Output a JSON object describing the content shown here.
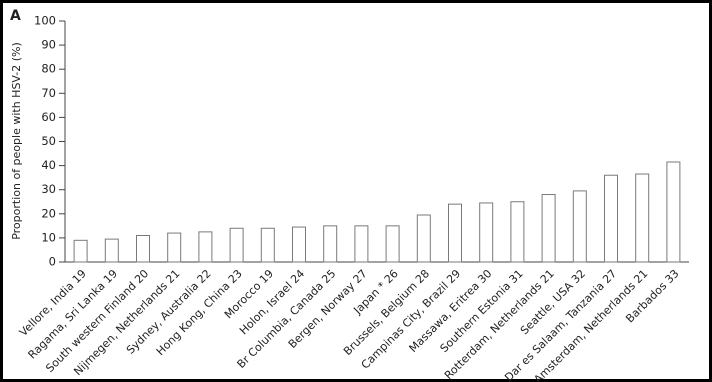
{
  "chart_data": {
    "type": "bar",
    "panel_label": "A",
    "y_label": "Proportion of people with HSV-2 (%)",
    "categories": [
      "Vellore, India 19",
      "Ragama, Sri Lanka 19",
      "South western Finland 20",
      "Nijmegen, Netherlands 21",
      "Sydney, Australia 22",
      "Hong Kong, China 23",
      "Morocco 19",
      "Holon, Israel 24",
      "Br Columbia, Canada 25",
      "Bergen, Norway 27",
      "Japan * 26",
      "Brussels, Belgium 28",
      "Campinas City, Brazil 29",
      "Massawa, Eritrea 30",
      "Southern Estonia 31",
      "Rotterdam, Netherlands 21",
      "Seattle, USA 32",
      "Dar es Salaam, Tanzania 27",
      "Amsterdam, Netherlands 21",
      "Barbados 33"
    ],
    "values": [
      9,
      9.5,
      11,
      12,
      12.5,
      14,
      14,
      14.5,
      15,
      15,
      15,
      19.5,
      24,
      24.5,
      25,
      28,
      29.5,
      36,
      36.5,
      41.5
    ],
    "color": "#ffffff",
    "ylim": [
      0,
      100
    ],
    "yticks": [
      0,
      10,
      20,
      30,
      40,
      50,
      60,
      70,
      80,
      90,
      100
    ]
  }
}
